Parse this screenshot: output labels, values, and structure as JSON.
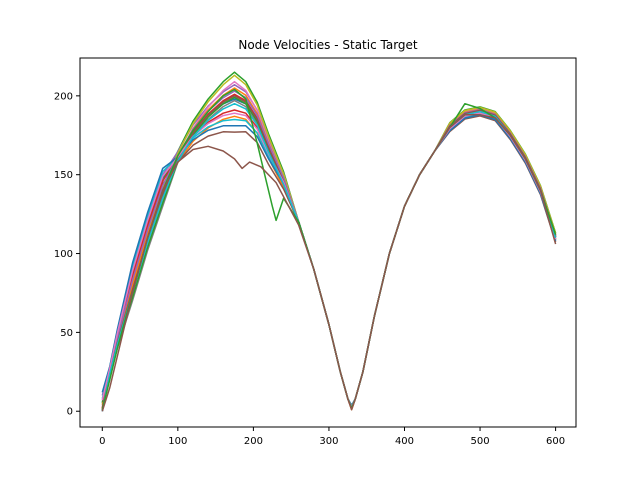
{
  "chart_data": {
    "type": "line",
    "title": "Node Velocities - Static Target",
    "xlabel": "",
    "ylabel": "",
    "xlim": [
      -29.5,
      627
    ],
    "ylim": [
      -10,
      224
    ],
    "xticks": [
      0,
      100,
      200,
      300,
      400,
      500,
      600
    ],
    "yticks": [
      0,
      50,
      100,
      150,
      200
    ],
    "xtick_labels": [
      "0",
      "100",
      "200",
      "300",
      "400",
      "500",
      "600"
    ],
    "ytick_labels": [
      "0",
      "50",
      "100",
      "150",
      "200"
    ],
    "grid": false,
    "legend": "none",
    "colors": [
      "#1f77b4",
      "#ff7f0e",
      "#2ca02c",
      "#d62728",
      "#9467bd",
      "#8c564b",
      "#e377c2",
      "#7f7f7f",
      "#bcbd22",
      "#17becf"
    ],
    "base_shape": {
      "x": [
        0,
        10,
        20,
        40,
        60,
        80,
        100,
        120,
        140,
        160,
        175,
        190,
        205,
        220,
        240,
        260,
        280,
        300,
        315,
        325,
        330,
        335,
        345,
        360,
        380,
        400,
        420,
        440,
        460,
        480,
        500,
        520,
        540,
        560,
        580,
        600
      ],
      "y": [
        2,
        25,
        45,
        80,
        112,
        140,
        160,
        175,
        185,
        192,
        195,
        192,
        182,
        165,
        145,
        120,
        90,
        55,
        25,
        8,
        2,
        8,
        25,
        60,
        100,
        130,
        150,
        165,
        180,
        188,
        190,
        187,
        175,
        160,
        140,
        110
      ]
    },
    "series": [
      {
        "color": "#1f77b4",
        "peak_delta": 3,
        "rise_delta": 8,
        "start": 0
      },
      {
        "color": "#ff7f0e",
        "peak_delta": -8,
        "rise_delta": -4,
        "start": 2
      },
      {
        "color": "#2ca02c",
        "peak_delta": 20,
        "rise_delta": 6,
        "start": 5
      },
      {
        "color": "#d62728",
        "peak_delta": 6,
        "rise_delta": -2,
        "start": 1
      },
      {
        "color": "#9467bd",
        "peak_delta": 12,
        "rise_delta": 10,
        "start": 10
      },
      {
        "color": "#8c564b",
        "peak_delta": -18,
        "rise_delta": 4,
        "start": 0
      },
      {
        "color": "#e377c2",
        "peak_delta": 14,
        "rise_delta": -6,
        "start": 3
      },
      {
        "color": "#7f7f7f",
        "peak_delta": 2,
        "rise_delta": -10,
        "start": 0
      },
      {
        "color": "#bcbd22",
        "peak_delta": 18,
        "rise_delta": 2,
        "start": 4
      },
      {
        "color": "#17becf",
        "peak_delta": -10,
        "rise_delta": 12,
        "start": 8
      },
      {
        "color": "#1f77b4",
        "peak_delta": -14,
        "rise_delta": 14,
        "start": 12
      },
      {
        "color": "#ff7f0e",
        "peak_delta": 10,
        "rise_delta": 0,
        "start": 0
      },
      {
        "color": "#2ca02c",
        "peak_delta": 4,
        "rise_delta": -8,
        "start": 6
      },
      {
        "color": "#d62728",
        "peak_delta": -4,
        "rise_delta": 6,
        "start": 2
      },
      {
        "color": "#9467bd",
        "peak_delta": 8,
        "rise_delta": 3,
        "start": 0
      },
      {
        "color": "#8c564b",
        "peak_delta": 5,
        "rise_delta": -3,
        "start": 1
      },
      {
        "color": "#e377c2",
        "peak_delta": -6,
        "rise_delta": 9,
        "start": 7
      },
      {
        "color": "#17becf",
        "peak_delta": 0,
        "rise_delta": -5,
        "start": 0
      }
    ],
    "special_series": [
      {
        "color": "#2ca02c",
        "x": [
          0,
          10,
          20,
          40,
          60,
          80,
          100,
          120,
          140,
          160,
          175,
          190,
          205,
          215,
          225,
          230,
          240,
          260,
          280,
          300,
          315,
          325,
          330,
          335,
          345,
          360,
          380,
          400,
          420,
          440,
          460,
          480,
          500,
          520,
          540,
          560,
          580,
          600
        ],
        "y": [
          1,
          20,
          40,
          75,
          110,
          140,
          162,
          178,
          190,
          200,
          204,
          198,
          170,
          150,
          130,
          121,
          135,
          120,
          90,
          55,
          25,
          8,
          2,
          8,
          25,
          60,
          100,
          130,
          150,
          165,
          180,
          195,
          192,
          186,
          175,
          160,
          140,
          112
        ]
      },
      {
        "color": "#8c564b",
        "x": [
          0,
          10,
          20,
          40,
          60,
          80,
          100,
          120,
          140,
          160,
          175,
          185,
          195,
          210,
          230,
          260,
          280,
          300,
          315,
          325,
          330,
          335,
          345,
          360,
          380,
          400,
          420,
          440,
          460,
          480,
          500,
          520,
          540,
          560,
          580,
          600
        ],
        "y": [
          0,
          15,
          35,
          75,
          110,
          140,
          158,
          166,
          168,
          165,
          160,
          154,
          158,
          155,
          145,
          118,
          90,
          55,
          25,
          8,
          1,
          8,
          25,
          60,
          100,
          130,
          150,
          165,
          180,
          188,
          188,
          186,
          175,
          160,
          140,
          106
        ]
      }
    ]
  }
}
